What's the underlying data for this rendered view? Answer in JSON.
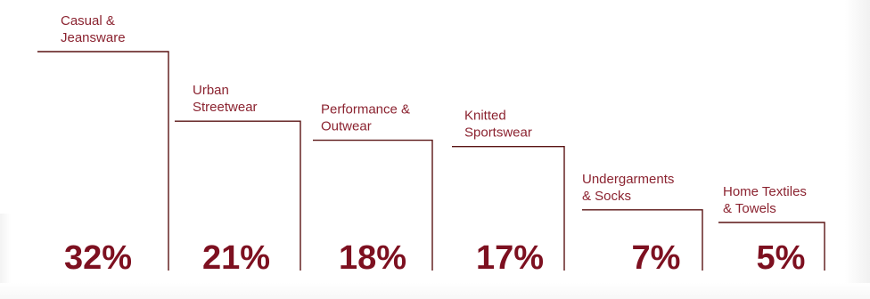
{
  "chart_data": {
    "type": "bar",
    "style": "step-outline",
    "title": "",
    "xlabel": "",
    "ylabel": "",
    "ylim": [
      0,
      32
    ],
    "grid": false,
    "legend": "none",
    "categories": [
      [
        "Casual &",
        "Jeansware"
      ],
      [
        "Urban",
        "Streetwear"
      ],
      [
        "Performance &",
        "Outwear"
      ],
      [
        "Knitted",
        "Sportswear"
      ],
      [
        "Undergarments",
        "& Socks"
      ],
      [
        "Home Textiles",
        "& Towels"
      ]
    ],
    "values": [
      32,
      21,
      18,
      17,
      7,
      5
    ],
    "value_labels": [
      "32%",
      "21%",
      "18%",
      "17%",
      "7%",
      "5%"
    ],
    "colors": {
      "outline": "#5a1414",
      "label": "#8b2330",
      "value": "#7d1020"
    }
  }
}
